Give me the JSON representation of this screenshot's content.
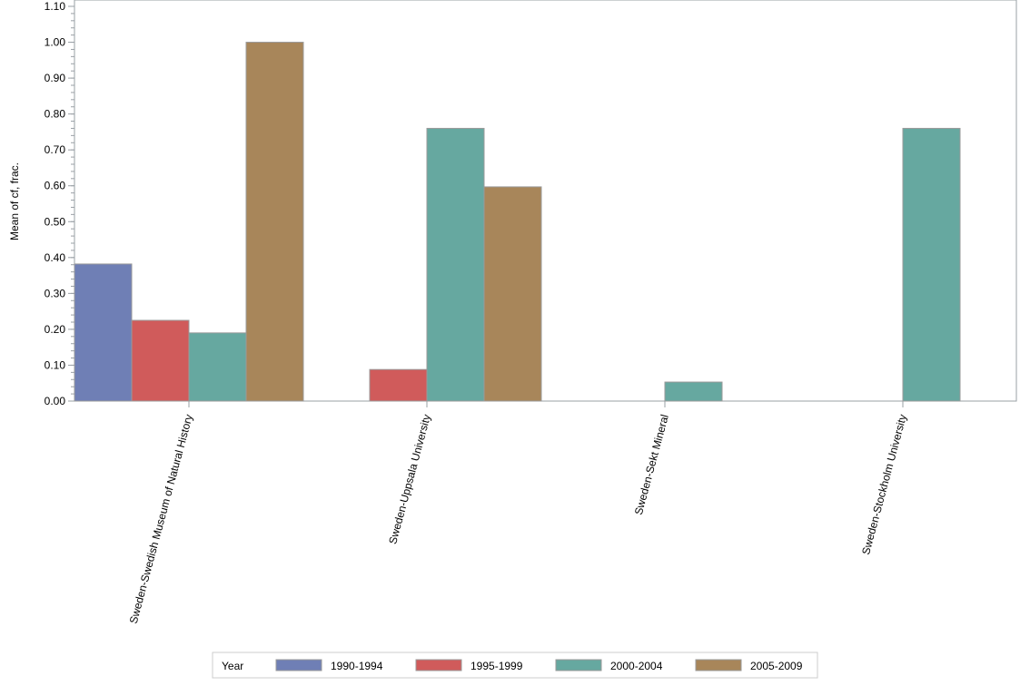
{
  "chart_data": {
    "type": "bar",
    "title": "",
    "xlabel": "",
    "ylabel": "Mean of cf, frac.",
    "ylim": [
      0,
      1.1
    ],
    "yticks": [
      "0.00",
      "0.10",
      "0.20",
      "0.30",
      "0.40",
      "0.50",
      "0.60",
      "0.70",
      "0.80",
      "0.90",
      "1.00",
      "1.10"
    ],
    "grid": false,
    "legend_title": "Year",
    "legend_placement": "bottom",
    "categories": [
      "Sweden-Swedish Museum of Natural History",
      "Sweden-Uppsala University",
      "Sweden-Sekt Mineral",
      "Sweden-Stockholm University"
    ],
    "series": [
      {
        "name": "1990-1994",
        "color": "#6f7fb5",
        "values": [
          0.382,
          null,
          null,
          null
        ]
      },
      {
        "name": "1995-1999",
        "color": "#d05b5b",
        "values": [
          0.225,
          0.088,
          null,
          null
        ]
      },
      {
        "name": "2000-2004",
        "color": "#66a8a0",
        "values": [
          0.19,
          0.76,
          0.053,
          0.76
        ]
      },
      {
        "name": "2005-2009",
        "color": "#a8865a",
        "values": [
          1.0,
          0.597,
          null,
          null
        ]
      }
    ]
  }
}
